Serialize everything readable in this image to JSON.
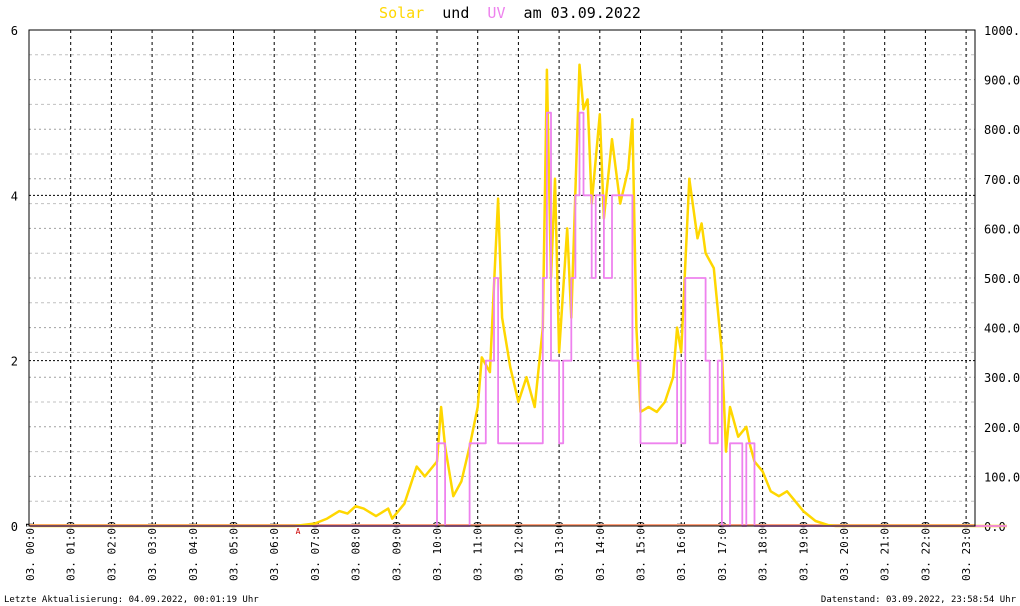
{
  "title": {
    "word_solar": "Solar",
    "word_und": "und",
    "word_uv": "UV",
    "word_am_date": "am 03.09.2022"
  },
  "footer": {
    "last_update": "Letzte Aktualisierung: 04.09.2022, 00:01:19 Uhr",
    "data_state": "Datenstand: 03.09.2022, 23:58:54 Uhr"
  },
  "colors": {
    "solar": "#ffd700",
    "uv": "#ee82ee",
    "baseline": "#ffa07a",
    "grid_major": "#000000",
    "grid_minor": "#c0c0c0",
    "title_text": "#000000"
  },
  "marker_label": "A",
  "chart_data": {
    "type": "line",
    "grid": true,
    "x_ticks": [
      "03. 00:01",
      "03. 01:00",
      "03. 02:00",
      "03. 03:01",
      "03. 04:01",
      "03. 05:00",
      "03. 06:01",
      "03. 07:00",
      "03. 08:01",
      "03. 09:00",
      "03. 10:00",
      "03. 11:00",
      "03. 12:00",
      "03. 13:00",
      "03. 14:00",
      "03. 15:00",
      "03. 16:01",
      "03. 17:00",
      "03. 18:00",
      "03. 19:00",
      "03. 20:00",
      "03. 21:00",
      "03. 22:00",
      "03. 23:00"
    ],
    "left_axis": {
      "ylim": [
        0,
        6
      ],
      "ticks": [
        "0",
        "2",
        "4",
        "6"
      ]
    },
    "right_axis": {
      "ylim": [
        0,
        1000
      ],
      "ticks": [
        "0.0",
        "100.0",
        "200.0",
        "300.0",
        "400.0",
        "500.0",
        "600.0",
        "700.0",
        "800.0",
        "900.0",
        "1000.0"
      ]
    },
    "series": [
      {
        "name": "Solar",
        "axis": "right",
        "points": [
          [
            0,
            0
          ],
          [
            6.5,
            0
          ],
          [
            7.0,
            5
          ],
          [
            7.3,
            15
          ],
          [
            7.6,
            30
          ],
          [
            7.8,
            25
          ],
          [
            8.0,
            40
          ],
          [
            8.2,
            35
          ],
          [
            8.5,
            20
          ],
          [
            8.8,
            35
          ],
          [
            8.9,
            15
          ],
          [
            9.0,
            25
          ],
          [
            9.2,
            45
          ],
          [
            9.5,
            120
          ],
          [
            9.7,
            100
          ],
          [
            10.0,
            130
          ],
          [
            10.1,
            240
          ],
          [
            10.2,
            160
          ],
          [
            10.4,
            60
          ],
          [
            10.6,
            90
          ],
          [
            10.8,
            160
          ],
          [
            11.0,
            240
          ],
          [
            11.1,
            340
          ],
          [
            11.3,
            310
          ],
          [
            11.5,
            660
          ],
          [
            11.6,
            420
          ],
          [
            11.8,
            320
          ],
          [
            12.0,
            250
          ],
          [
            12.2,
            300
          ],
          [
            12.4,
            240
          ],
          [
            12.6,
            400
          ],
          [
            12.7,
            920
          ],
          [
            12.8,
            500
          ],
          [
            12.9,
            700
          ],
          [
            13.0,
            350
          ],
          [
            13.2,
            600
          ],
          [
            13.3,
            420
          ],
          [
            13.5,
            930
          ],
          [
            13.6,
            840
          ],
          [
            13.7,
            860
          ],
          [
            13.8,
            650
          ],
          [
            14.0,
            830
          ],
          [
            14.1,
            620
          ],
          [
            14.3,
            780
          ],
          [
            14.5,
            650
          ],
          [
            14.7,
            720
          ],
          [
            14.8,
            820
          ],
          [
            14.9,
            400
          ],
          [
            15.0,
            230
          ],
          [
            15.2,
            240
          ],
          [
            15.4,
            230
          ],
          [
            15.6,
            250
          ],
          [
            15.8,
            300
          ],
          [
            15.9,
            400
          ],
          [
            16.0,
            350
          ],
          [
            16.2,
            700
          ],
          [
            16.4,
            580
          ],
          [
            16.5,
            610
          ],
          [
            16.6,
            550
          ],
          [
            16.8,
            520
          ],
          [
            17.0,
            350
          ],
          [
            17.1,
            150
          ],
          [
            17.2,
            240
          ],
          [
            17.4,
            180
          ],
          [
            17.6,
            200
          ],
          [
            17.7,
            160
          ],
          [
            17.8,
            130
          ],
          [
            18.0,
            110
          ],
          [
            18.2,
            70
          ],
          [
            18.4,
            60
          ],
          [
            18.6,
            70
          ],
          [
            18.8,
            50
          ],
          [
            19.0,
            30
          ],
          [
            19.3,
            10
          ],
          [
            19.6,
            2
          ],
          [
            19.8,
            0
          ],
          [
            24.0,
            0
          ]
        ]
      },
      {
        "name": "UV",
        "axis": "left",
        "points": [
          [
            0,
            0
          ],
          [
            10.0,
            0
          ],
          [
            10.0,
            1
          ],
          [
            10.2,
            1
          ],
          [
            10.2,
            0
          ],
          [
            10.8,
            0
          ],
          [
            10.8,
            1
          ],
          [
            11.2,
            1
          ],
          [
            11.2,
            2
          ],
          [
            11.4,
            2
          ],
          [
            11.4,
            3
          ],
          [
            11.5,
            3
          ],
          [
            11.5,
            1
          ],
          [
            11.9,
            1
          ],
          [
            11.9,
            1
          ],
          [
            12.6,
            1
          ],
          [
            12.6,
            3
          ],
          [
            12.7,
            3
          ],
          [
            12.7,
            5
          ],
          [
            12.8,
            5
          ],
          [
            12.8,
            2
          ],
          [
            13.0,
            2
          ],
          [
            13.0,
            1
          ],
          [
            13.1,
            1
          ],
          [
            13.1,
            2
          ],
          [
            13.3,
            2
          ],
          [
            13.3,
            3
          ],
          [
            13.4,
            3
          ],
          [
            13.4,
            4
          ],
          [
            13.5,
            4
          ],
          [
            13.5,
            5
          ],
          [
            13.6,
            5
          ],
          [
            13.6,
            4
          ],
          [
            13.8,
            4
          ],
          [
            13.8,
            3
          ],
          [
            13.9,
            3
          ],
          [
            13.9,
            4
          ],
          [
            14.1,
            4
          ],
          [
            14.1,
            3
          ],
          [
            14.3,
            3
          ],
          [
            14.3,
            4
          ],
          [
            14.8,
            4
          ],
          [
            14.8,
            2
          ],
          [
            15.0,
            2
          ],
          [
            15.0,
            1
          ],
          [
            15.9,
            1
          ],
          [
            15.9,
            2
          ],
          [
            16.0,
            2
          ],
          [
            16.0,
            1
          ],
          [
            16.1,
            1
          ],
          [
            16.1,
            3
          ],
          [
            16.6,
            3
          ],
          [
            16.6,
            2
          ],
          [
            16.7,
            2
          ],
          [
            16.7,
            1
          ],
          [
            16.9,
            1
          ],
          [
            16.9,
            2
          ],
          [
            17.0,
            2
          ],
          [
            17.0,
            0
          ],
          [
            17.2,
            0
          ],
          [
            17.2,
            1
          ],
          [
            17.5,
            1
          ],
          [
            17.5,
            0
          ],
          [
            17.6,
            0
          ],
          [
            17.6,
            1
          ],
          [
            17.8,
            1
          ],
          [
            17.8,
            0
          ],
          [
            24.0,
            0
          ]
        ]
      }
    ]
  }
}
